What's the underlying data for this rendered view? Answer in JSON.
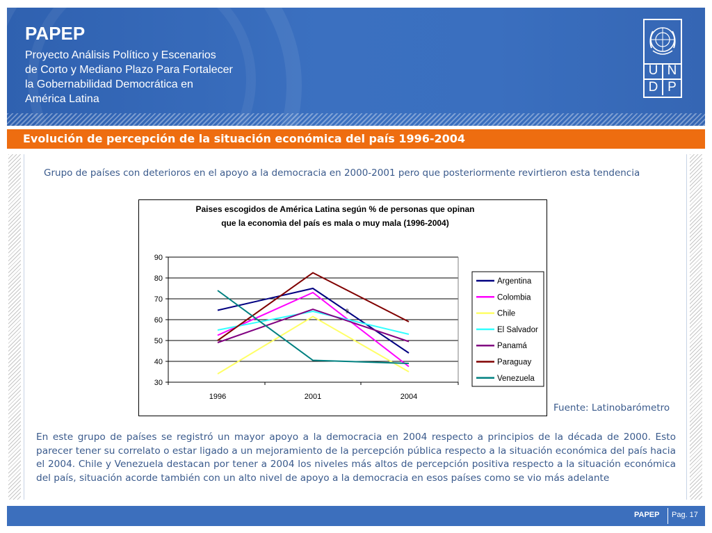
{
  "header": {
    "title": "PAPEP",
    "subtitle": "Proyecto Análisis Político y Escenarios\nde Corto y Mediano Plazo Para Fortalecer\nla Gobernabilidad Democrática en\nAmérica Latina",
    "logo": {
      "cells": [
        "U",
        "N",
        "D",
        "P"
      ]
    }
  },
  "slide": {
    "title": "Evolución de percepción de la situación económica del país 1996-2004",
    "intro": "Grupo de países con deterioros en el apoyo a la democracia en 2000-2001 pero que posteriormente revirtieron esta tendencia",
    "source": "Fuente: Latinobarómetro",
    "paragraph": "En este grupo de países se registró un mayor apoyo a la democracia en 2004 respecto a principios de la década de 2000. Esto parecer tener su correlato o estar ligado a un mejoramiento de la percepción pública respecto a la situación económica del país hacia el 2004. Chile y Venezuela destacan por tener a 2004 los niveles más altos de percepción positiva respecto a la situación económica del país, situación acorde también con un alto nivel de apoyo a la democracia en esos países como se vio más adelante"
  },
  "footer": {
    "brand": "PAPEP",
    "page": "Pag. 17"
  },
  "chart_data": {
    "type": "line",
    "title_lines": [
      "Paises escogidos de América Latina según % de personas que opinan",
      "que la economìa del país es mala o muy mala (1996-2004)"
    ],
    "x": [
      "1996",
      "2001",
      "2004"
    ],
    "ylim": [
      30,
      90
    ],
    "yticks": [
      30,
      40,
      50,
      60,
      70,
      80,
      90
    ],
    "grid": true,
    "legend": "right",
    "annotation": {
      "text": "9",
      "x": "2001",
      "y": 62.5
    },
    "series": [
      {
        "name": "Argentina",
        "color": "#000080",
        "values": [
          64.5,
          75,
          44
        ]
      },
      {
        "name": "Colombia",
        "color": "#ff00ff",
        "values": [
          52.5,
          73,
          37.5
        ]
      },
      {
        "name": "Chile",
        "color": "#ffff66",
        "values": [
          34,
          61.5,
          35
        ]
      },
      {
        "name": "El Salvador",
        "color": "#33ffff",
        "values": [
          55,
          64,
          53
        ]
      },
      {
        "name": "Panamá",
        "color": "#800080",
        "values": [
          49,
          65,
          49.5
        ]
      },
      {
        "name": "Paraguay",
        "color": "#800000",
        "values": [
          50,
          82.5,
          59
        ]
      },
      {
        "name": "Venezuela",
        "color": "#008080",
        "values": [
          74,
          40.5,
          39
        ]
      }
    ]
  }
}
